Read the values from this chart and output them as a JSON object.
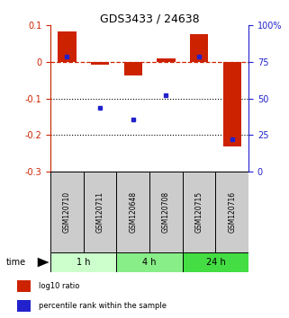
{
  "title": "GDS3433 / 24638",
  "samples": [
    "GSM120710",
    "GSM120711",
    "GSM120648",
    "GSM120708",
    "GSM120715",
    "GSM120716"
  ],
  "log10_ratio": [
    0.083,
    -0.008,
    -0.038,
    0.01,
    0.075,
    -0.23
  ],
  "percentile_rank": [
    0.79,
    0.44,
    0.36,
    0.525,
    0.79,
    0.22
  ],
  "groups": [
    {
      "label": "1 h",
      "indices": [
        0,
        1
      ],
      "color": "#ccffcc"
    },
    {
      "label": "4 h",
      "indices": [
        2,
        3
      ],
      "color": "#88ee88"
    },
    {
      "label": "24 h",
      "indices": [
        4,
        5
      ],
      "color": "#44dd44"
    }
  ],
  "ylim_left": [
    -0.3,
    0.1
  ],
  "ylim_right": [
    0.0,
    1.0
  ],
  "yticks_left": [
    -0.3,
    -0.2,
    -0.1,
    0.0,
    0.1
  ],
  "ytick_labels_left": [
    "-0.3",
    "-0.2",
    "-0.1",
    "0",
    "0.1"
  ],
  "yticks_right": [
    0.0,
    0.25,
    0.5,
    0.75,
    1.0
  ],
  "ytick_labels_right": [
    "0",
    "25",
    "50",
    "75",
    "100%"
  ],
  "bar_width": 0.55,
  "red_color": "#cc2200",
  "blue_color": "#2222cc",
  "hline_y": 0.0,
  "dotted_lines": [
    -0.1,
    -0.2
  ],
  "legend_items": [
    {
      "color": "#cc2200",
      "label": "log10 ratio"
    },
    {
      "color": "#2222cc",
      "label": "percentile rank within the sample"
    }
  ],
  "sample_label_bg": "#cccccc",
  "plot_bg": "#ffffff",
  "title_fontsize": 9,
  "tick_fontsize": 7,
  "label_fontsize": 6,
  "sample_fontsize": 5.5,
  "time_fontsize": 7,
  "group_fontsize": 7
}
